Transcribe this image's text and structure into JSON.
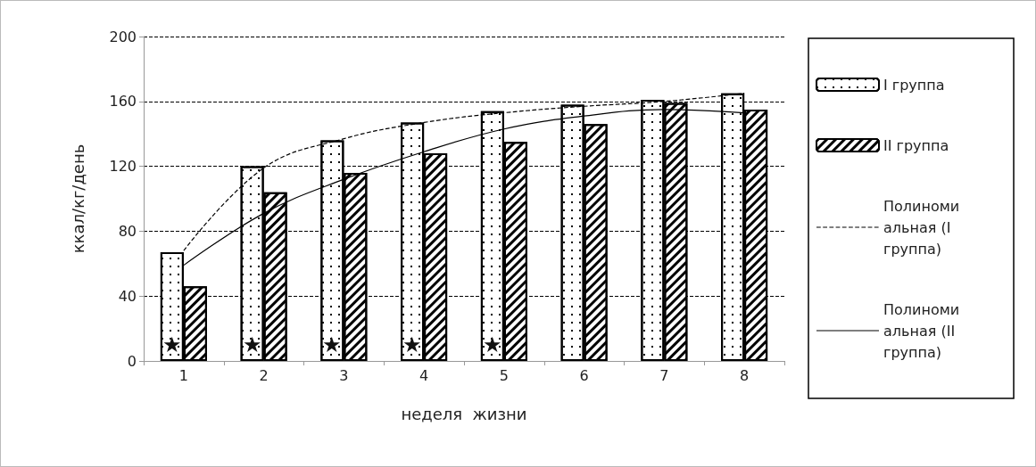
{
  "chart_data": {
    "type": "bar",
    "xlabel": "неделя  жизни",
    "ylabel": "ккал/кг/день",
    "categories": [
      "1",
      "2",
      "3",
      "4",
      "5",
      "6",
      "7",
      "8"
    ],
    "series": [
      {
        "name": "I группа",
        "color": "#ffffff",
        "values": [
          67,
          120,
          136,
          147,
          154,
          158,
          161,
          165
        ]
      },
      {
        "name": "II группа",
        "color": "#ffffff",
        "values": [
          46,
          104,
          116,
          128,
          135,
          146,
          159,
          155
        ]
      },
      {
        "name": "Полиномиальная (I группа)",
        "type": "line",
        "color": "#000000",
        "line_style": "dashed",
        "values": [
          68,
          119,
          137,
          147,
          153,
          157,
          160,
          165
        ]
      },
      {
        "name": "Полиномиальная (II группа)",
        "type": "line",
        "color": "#000000",
        "line_style": "solid",
        "values": [
          59,
          91,
          112,
          129,
          143,
          151,
          155,
          153
        ]
      }
    ],
    "ylim": [
      0,
      200
    ],
    "yticks": [
      0,
      40,
      80,
      120,
      160,
      200
    ],
    "grid": "y",
    "legend": "right",
    "marker": "none",
    "annotations": [
      {
        "text": "★",
        "x": "1",
        "y": 10
      },
      {
        "text": "★",
        "x": "2",
        "y": 10
      },
      {
        "text": "★",
        "x": "3",
        "y": 10
      },
      {
        "text": "★",
        "x": "4",
        "y": 10
      },
      {
        "text": "★",
        "x": "5",
        "y": 10
      }
    ]
  }
}
